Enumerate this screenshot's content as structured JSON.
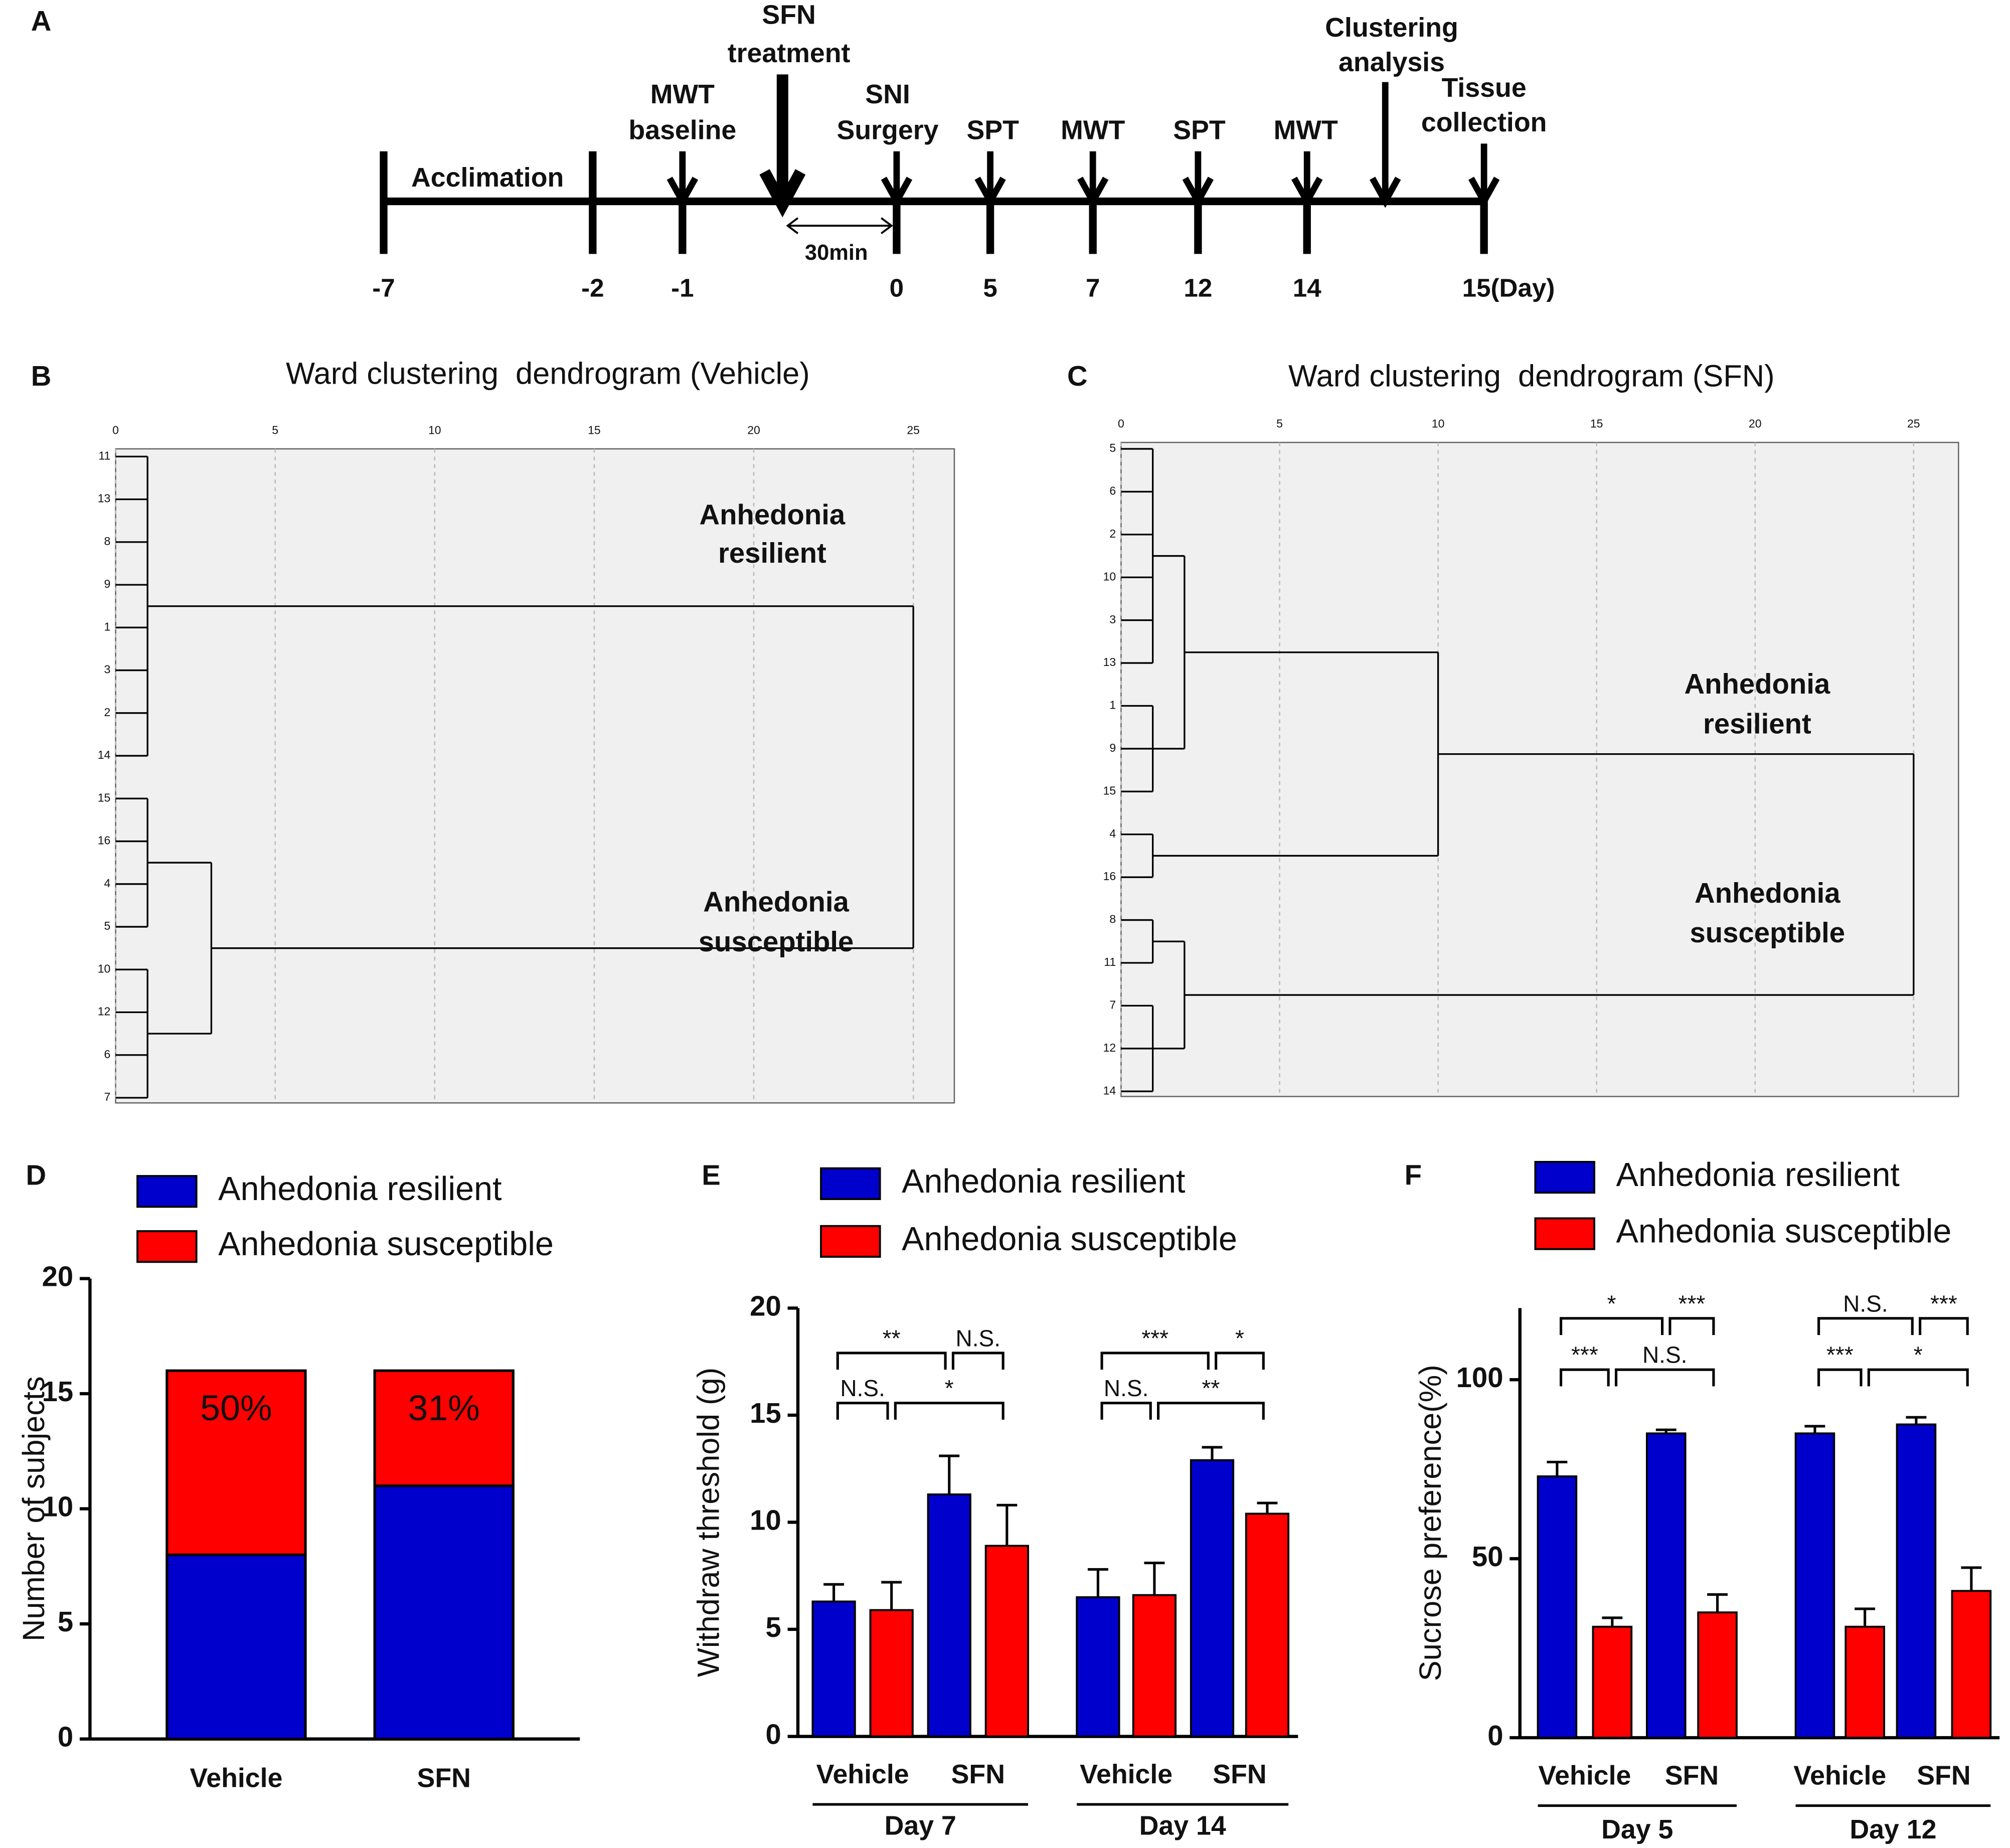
{
  "panels": [
    "A",
    "B",
    "C",
    "D",
    "E",
    "F"
  ],
  "timeline": {
    "events": [
      [
        "Acclimation"
      ],
      [
        "MWT",
        "baseline"
      ],
      [
        "SFN",
        "treatment"
      ],
      [
        "SNI",
        "Surgery"
      ],
      [
        "SPT"
      ],
      [
        "MWT"
      ],
      [
        "SPT"
      ],
      [
        "MWT"
      ],
      [
        "Clustering",
        "analysis"
      ],
      [
        "Tissue",
        "collection"
      ]
    ],
    "interval_label": "30min",
    "days": [
      -7,
      -2,
      -1,
      0,
      5,
      7,
      12,
      14,
      {
        "value": 15,
        "label": "15(Day)"
      }
    ]
  },
  "chart_data": [
    {
      "type": "dendrogram",
      "title": "Ward clustering  dendrogram (Vehicle)",
      "leaves": [
        "11",
        "13",
        "8",
        "9",
        "1",
        "3",
        "2",
        "14",
        "15",
        "16",
        "4",
        "5",
        "10",
        "12",
        "6",
        "7"
      ],
      "merges": [
        {
          "children": [
            0,
            1,
            2,
            3,
            4,
            5,
            6,
            7
          ],
          "height": 1
        },
        {
          "children": [
            8,
            9,
            10,
            11
          ],
          "height": 1
        },
        {
          "children": [
            12,
            13,
            14,
            15
          ],
          "height": 1
        },
        {
          "children": [
            17,
            18
          ],
          "height": 3
        },
        {
          "children": [
            16,
            19
          ],
          "height": 25
        }
      ],
      "xlim": [
        0,
        25
      ],
      "xticks": [
        0,
        5,
        10,
        15,
        20,
        25
      ],
      "grid": true,
      "annotations": [
        [
          "Anhedonia",
          "resilient"
        ],
        [
          "Anhedonia",
          "susceptible"
        ]
      ]
    },
    {
      "type": "dendrogram",
      "title": "Ward clustering  dendrogram (SFN)",
      "leaves": [
        "5",
        "6",
        "2",
        "10",
        "3",
        "13",
        "1",
        "9",
        "15",
        "4",
        "16",
        "8",
        "11",
        "7",
        "12",
        "14"
      ],
      "merges": [
        {
          "children": [
            0,
            1,
            2,
            3,
            4,
            5
          ],
          "height": 1
        },
        {
          "children": [
            6,
            7,
            8
          ],
          "height": 1
        },
        {
          "children": [
            9,
            10
          ],
          "height": 1
        },
        {
          "children": [
            11,
            12
          ],
          "height": 1
        },
        {
          "children": [
            13,
            14,
            15
          ],
          "height": 1
        },
        {
          "children": [
            16,
            17
          ],
          "height": 2
        },
        {
          "children": [
            21,
            18
          ],
          "height": 10
        },
        {
          "children": [
            19,
            20
          ],
          "height": 2
        },
        {
          "children": [
            22,
            23
          ],
          "height": 25
        }
      ],
      "xlim": [
        0,
        25
      ],
      "xticks": [
        0,
        5,
        10,
        15,
        20,
        25
      ],
      "grid": true,
      "annotations": [
        [
          "Anhedonia",
          "resilient"
        ],
        [
          "Anhedonia",
          "susceptible"
        ]
      ]
    },
    {
      "type": "stacked_bar",
      "categories": [
        "Vehicle",
        "SFN"
      ],
      "series": [
        {
          "name": "Anhedonia resilient",
          "color": "#0000cc",
          "values": [
            8,
            11
          ]
        },
        {
          "name": "Anhedonia susceptible",
          "color": "#ff0000",
          "values": [
            8,
            5
          ]
        }
      ],
      "annotations": [
        "50%",
        "31%"
      ],
      "ylabel": "Number of subjects",
      "ylim": [
        0,
        20
      ],
      "yticks": [
        0,
        5,
        10,
        15,
        20
      ]
    },
    {
      "type": "grouped_bar",
      "groups": [
        "Day 7",
        "Day 14"
      ],
      "categories": [
        "Vehicle",
        "SFN",
        "Vehicle",
        "SFN"
      ],
      "series": [
        {
          "name": "Anhedonia resilient",
          "color": "#0000cc",
          "values": [
            6.3,
            11.3,
            6.5,
            12.9
          ],
          "errors": [
            0.8,
            1.8,
            1.3,
            0.6
          ]
        },
        {
          "name": "Anhedonia susceptible",
          "color": "#ff0000",
          "values": [
            5.9,
            8.9,
            6.6,
            10.4
          ],
          "errors": [
            1.3,
            1.9,
            1.5,
            0.5
          ]
        }
      ],
      "significance": [
        "**",
        "N.S.",
        "N.S.",
        "*",
        "***",
        "*",
        "N.S.",
        "**"
      ],
      "ylabel": "Withdraw threshold (g)",
      "ylim": [
        0,
        20
      ],
      "yticks": [
        0,
        5,
        10,
        15,
        20
      ]
    },
    {
      "type": "grouped_bar",
      "groups": [
        "Day 5",
        "Day 12"
      ],
      "categories": [
        "Vehicle",
        "SFN",
        "Vehicle",
        "SFN"
      ],
      "series": [
        {
          "name": "Anhedonia resilient",
          "color": "#0000cc",
          "values": [
            73,
            85,
            85,
            87.5
          ],
          "errors": [
            4,
            1,
            2,
            2
          ]
        },
        {
          "name": "Anhedonia susceptible",
          "color": "#ff0000",
          "values": [
            31,
            35,
            31,
            41
          ],
          "errors": [
            2.5,
            5,
            5,
            6.5
          ]
        }
      ],
      "significance": [
        "*",
        "***",
        "***",
        "N.S.",
        "N.S.",
        "***",
        "***",
        "*"
      ],
      "ylabel": "Sucrose preference(%)",
      "ylim": [
        0,
        120
      ],
      "yticks": [
        0,
        50,
        100
      ]
    }
  ]
}
